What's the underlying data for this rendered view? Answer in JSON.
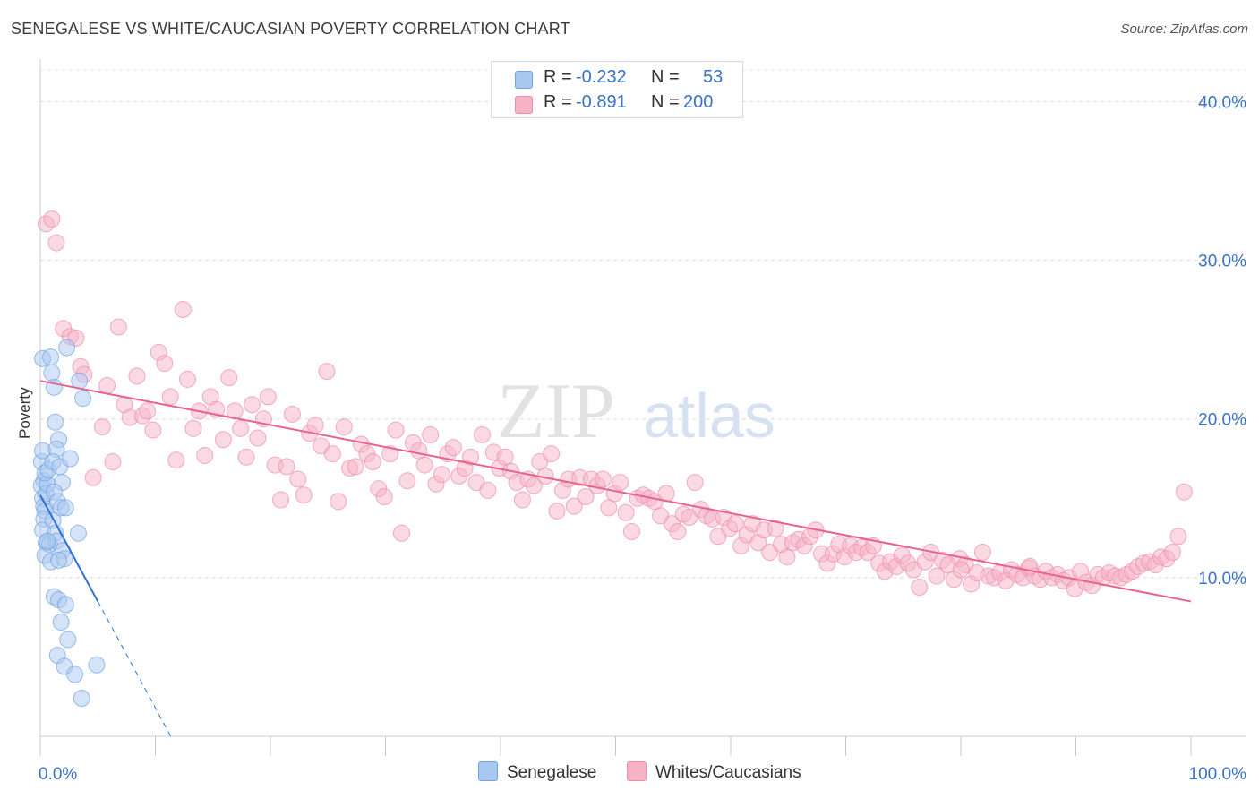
{
  "title": "SENEGALESE VS WHITE/CAUCASIAN POVERTY CORRELATION CHART",
  "source": "Source: ZipAtlas.com",
  "watermark": {
    "zip": "ZIP",
    "atlas": "atlas"
  },
  "legend": {
    "rows": [
      {
        "r_label": "R =",
        "r_value": "-0.232",
        "n_label": "N =",
        "n_value": "53",
        "color": "#a9c8f0"
      },
      {
        "r_label": "R =",
        "r_value": "-0.891",
        "n_label": "N =",
        "n_value": "200",
        "color": "#f6b3c6"
      }
    ]
  },
  "bottom_legend": {
    "s1": "Senegalese",
    "s2": "Whites/Caucasians"
  },
  "chart_data": {
    "type": "scatter",
    "title": "SENEGALESE VS WHITE/CAUCASIAN POVERTY CORRELATION CHART",
    "xlabel": "",
    "ylabel": "Poverty",
    "xlim": [
      0,
      100
    ],
    "ylim": [
      0,
      42
    ],
    "x_tick_labels": [
      "0.0%",
      "100.0%"
    ],
    "y_tick_labels": [
      "10.0%",
      "20.0%",
      "30.0%",
      "40.0%"
    ],
    "y_ticks": [
      10,
      20,
      30,
      40
    ],
    "grid": "horizontal dashed",
    "legend_placement": "top-center",
    "series": [
      {
        "name": "Senegalese",
        "color": "#6fa3e6",
        "fill": "#a9c8f0",
        "trend": {
          "x0": 0,
          "y0": 15.2,
          "x1": 5,
          "y1": 8.5,
          "dash_to_x": 11.5,
          "color": "#2f72d0"
        },
        "points": [
          [
            0.2,
            23.8
          ],
          [
            0.3,
            16.1
          ],
          [
            0.1,
            15.8
          ],
          [
            0.2,
            15.0
          ],
          [
            0.3,
            14.5
          ],
          [
            0.4,
            14.2
          ],
          [
            0.5,
            15.3
          ],
          [
            0.6,
            15.9
          ],
          [
            0.1,
            17.3
          ],
          [
            0.2,
            18.0
          ],
          [
            0.4,
            16.6
          ],
          [
            0.7,
            16.8
          ],
          [
            0.3,
            13.7
          ],
          [
            0.2,
            13.0
          ],
          [
            0.5,
            12.2
          ],
          [
            0.8,
            12.1
          ],
          [
            0.4,
            11.4
          ],
          [
            0.9,
            11.0
          ],
          [
            1.2,
            22.0
          ],
          [
            0.9,
            23.9
          ],
          [
            1.0,
            22.9
          ],
          [
            1.3,
            19.8
          ],
          [
            1.6,
            18.7
          ],
          [
            1.4,
            18.1
          ],
          [
            1.1,
            17.3
          ],
          [
            1.7,
            17.0
          ],
          [
            1.9,
            16.0
          ],
          [
            1.2,
            15.4
          ],
          [
            1.5,
            14.8
          ],
          [
            1.8,
            14.4
          ],
          [
            1.1,
            13.6
          ],
          [
            1.3,
            12.8
          ],
          [
            1.4,
            12.3
          ],
          [
            1.9,
            11.7
          ],
          [
            2.1,
            11.2
          ],
          [
            1.6,
            11.1
          ],
          [
            1.2,
            8.8
          ],
          [
            1.6,
            8.6
          ],
          [
            2.2,
            8.3
          ],
          [
            1.8,
            7.2
          ],
          [
            2.4,
            6.1
          ],
          [
            1.5,
            5.1
          ],
          [
            2.1,
            4.4
          ],
          [
            3.0,
            3.9
          ],
          [
            3.6,
            2.4
          ],
          [
            4.9,
            4.5
          ],
          [
            2.3,
            24.5
          ],
          [
            3.4,
            22.4
          ],
          [
            3.7,
            21.3
          ],
          [
            3.3,
            12.8
          ],
          [
            2.6,
            17.5
          ],
          [
            2.2,
            14.4
          ],
          [
            0.6,
            12.3
          ]
        ]
      },
      {
        "name": "Whites/Caucasians",
        "color": "#f08aa8",
        "fill": "#f6b3c6",
        "trend": {
          "x0": 0,
          "y0": 22.4,
          "x1": 100,
          "y1": 8.5,
          "color": "#e8628c"
        },
        "points": [
          [
            0.5,
            32.3
          ],
          [
            1.0,
            32.6
          ],
          [
            1.4,
            31.1
          ],
          [
            2.0,
            25.7
          ],
          [
            2.6,
            25.2
          ],
          [
            3.1,
            25.1
          ],
          [
            3.5,
            23.3
          ],
          [
            3.8,
            22.8
          ],
          [
            4.6,
            16.3
          ],
          [
            5.4,
            19.5
          ],
          [
            5.8,
            22.1
          ],
          [
            6.3,
            17.3
          ],
          [
            6.8,
            25.8
          ],
          [
            7.3,
            20.9
          ],
          [
            7.8,
            20.1
          ],
          [
            8.4,
            22.7
          ],
          [
            8.9,
            20.2
          ],
          [
            9.3,
            20.5
          ],
          [
            9.8,
            19.3
          ],
          [
            10.3,
            24.2
          ],
          [
            10.8,
            23.5
          ],
          [
            11.3,
            21.4
          ],
          [
            11.8,
            17.4
          ],
          [
            12.4,
            26.9
          ],
          [
            12.8,
            22.5
          ],
          [
            13.3,
            19.4
          ],
          [
            13.8,
            20.5
          ],
          [
            14.3,
            17.7
          ],
          [
            14.8,
            21.4
          ],
          [
            15.3,
            20.6
          ],
          [
            15.9,
            18.7
          ],
          [
            16.4,
            22.6
          ],
          [
            16.9,
            20.5
          ],
          [
            17.4,
            19.4
          ],
          [
            17.9,
            17.6
          ],
          [
            18.4,
            20.9
          ],
          [
            18.9,
            18.8
          ],
          [
            19.4,
            20.0
          ],
          [
            19.8,
            21.4
          ],
          [
            20.4,
            17.1
          ],
          [
            20.9,
            14.9
          ],
          [
            21.4,
            17.0
          ],
          [
            21.9,
            20.3
          ],
          [
            22.4,
            16.2
          ],
          [
            22.9,
            15.2
          ],
          [
            23.4,
            19.1
          ],
          [
            23.9,
            19.6
          ],
          [
            24.4,
            18.3
          ],
          [
            24.9,
            23.0
          ],
          [
            25.4,
            17.8
          ],
          [
            25.9,
            14.8
          ],
          [
            26.4,
            19.5
          ],
          [
            26.9,
            16.9
          ],
          [
            27.4,
            17.0
          ],
          [
            27.9,
            18.4
          ],
          [
            28.4,
            17.8
          ],
          [
            28.9,
            17.3
          ],
          [
            29.4,
            15.6
          ],
          [
            29.9,
            15.1
          ],
          [
            30.4,
            17.8
          ],
          [
            30.9,
            19.3
          ],
          [
            31.4,
            12.8
          ],
          [
            31.9,
            16.1
          ],
          [
            32.4,
            18.5
          ],
          [
            32.9,
            18.0
          ],
          [
            33.4,
            17.1
          ],
          [
            33.9,
            19.0
          ],
          [
            34.4,
            15.9
          ],
          [
            34.9,
            16.5
          ],
          [
            35.4,
            17.8
          ],
          [
            35.9,
            18.2
          ],
          [
            36.4,
            16.4
          ],
          [
            36.9,
            16.9
          ],
          [
            37.4,
            17.6
          ],
          [
            37.9,
            16.0
          ],
          [
            38.4,
            19.0
          ],
          [
            38.9,
            15.5
          ],
          [
            39.4,
            17.9
          ],
          [
            39.9,
            16.9
          ],
          [
            40.4,
            17.6
          ],
          [
            40.9,
            16.7
          ],
          [
            41.4,
            16.0
          ],
          [
            41.9,
            14.9
          ],
          [
            42.4,
            16.2
          ],
          [
            42.9,
            15.8
          ],
          [
            43.4,
            17.3
          ],
          [
            43.9,
            16.4
          ],
          [
            44.4,
            17.8
          ],
          [
            44.9,
            14.2
          ],
          [
            45.4,
            15.5
          ],
          [
            45.9,
            16.2
          ],
          [
            46.4,
            14.5
          ],
          [
            46.9,
            16.3
          ],
          [
            47.4,
            15.1
          ],
          [
            47.9,
            16.2
          ],
          [
            48.4,
            15.8
          ],
          [
            48.9,
            16.2
          ],
          [
            49.4,
            14.4
          ],
          [
            49.9,
            15.3
          ],
          [
            50.4,
            16.0
          ],
          [
            50.9,
            14.1
          ],
          [
            51.4,
            12.9
          ],
          [
            51.9,
            15.0
          ],
          [
            52.4,
            15.2
          ],
          [
            52.9,
            15.0
          ],
          [
            53.4,
            14.8
          ],
          [
            53.9,
            13.9
          ],
          [
            54.4,
            15.3
          ],
          [
            54.9,
            13.4
          ],
          [
            55.4,
            12.9
          ],
          [
            55.9,
            14.0
          ],
          [
            56.4,
            13.8
          ],
          [
            56.9,
            16.0
          ],
          [
            57.4,
            14.3
          ],
          [
            57.9,
            13.9
          ],
          [
            58.4,
            13.7
          ],
          [
            58.9,
            12.6
          ],
          [
            59.4,
            13.8
          ],
          [
            59.9,
            13.1
          ],
          [
            60.4,
            13.4
          ],
          [
            60.9,
            12.0
          ],
          [
            61.4,
            12.7
          ],
          [
            61.9,
            13.4
          ],
          [
            62.4,
            12.2
          ],
          [
            62.9,
            13.0
          ],
          [
            63.4,
            11.6
          ],
          [
            63.9,
            13.1
          ],
          [
            64.4,
            12.1
          ],
          [
            64.9,
            11.3
          ],
          [
            65.4,
            12.2
          ],
          [
            65.9,
            12.4
          ],
          [
            66.4,
            12.0
          ],
          [
            66.9,
            12.6
          ],
          [
            67.4,
            13.0
          ],
          [
            67.9,
            11.5
          ],
          [
            68.4,
            10.9
          ],
          [
            68.9,
            11.5
          ],
          [
            69.4,
            12.1
          ],
          [
            69.9,
            11.3
          ],
          [
            70.4,
            12.0
          ],
          [
            70.9,
            11.6
          ],
          [
            71.4,
            11.9
          ],
          [
            71.9,
            11.6
          ],
          [
            72.4,
            12.0
          ],
          [
            72.9,
            10.9
          ],
          [
            73.4,
            10.4
          ],
          [
            73.9,
            11.0
          ],
          [
            74.4,
            10.7
          ],
          [
            74.9,
            11.4
          ],
          [
            75.4,
            10.9
          ],
          [
            75.9,
            10.5
          ],
          [
            76.4,
            9.4
          ],
          [
            76.9,
            11.0
          ],
          [
            77.4,
            11.6
          ],
          [
            77.9,
            10.1
          ],
          [
            78.4,
            11.1
          ],
          [
            78.9,
            10.8
          ],
          [
            79.4,
            9.9
          ],
          [
            79.9,
            11.2
          ],
          [
            80.4,
            10.8
          ],
          [
            80.9,
            9.6
          ],
          [
            81.4,
            10.3
          ],
          [
            81.9,
            11.6
          ],
          [
            82.4,
            10.1
          ],
          [
            82.9,
            10.0
          ],
          [
            83.4,
            10.3
          ],
          [
            83.9,
            9.8
          ],
          [
            84.4,
            10.5
          ],
          [
            84.9,
            10.2
          ],
          [
            85.4,
            10.0
          ],
          [
            85.9,
            10.6
          ],
          [
            86.4,
            10.1
          ],
          [
            86.9,
            9.9
          ],
          [
            87.4,
            10.4
          ],
          [
            87.9,
            10.0
          ],
          [
            88.4,
            10.2
          ],
          [
            88.9,
            9.8
          ],
          [
            89.4,
            10.0
          ],
          [
            89.9,
            9.3
          ],
          [
            90.4,
            10.4
          ],
          [
            90.9,
            9.7
          ],
          [
            91.4,
            9.5
          ],
          [
            91.9,
            10.2
          ],
          [
            92.4,
            10.0
          ],
          [
            92.9,
            10.3
          ],
          [
            93.4,
            10.1
          ],
          [
            93.9,
            10.0
          ],
          [
            94.4,
            10.2
          ],
          [
            94.9,
            10.4
          ],
          [
            95.4,
            10.7
          ],
          [
            95.9,
            10.9
          ],
          [
            96.4,
            11.0
          ],
          [
            96.9,
            10.8
          ],
          [
            97.4,
            11.3
          ],
          [
            97.9,
            11.2
          ],
          [
            98.4,
            11.6
          ],
          [
            98.9,
            12.6
          ],
          [
            99.4,
            15.4
          ],
          [
            86.0,
            10.7
          ],
          [
            80.0,
            10.5
          ]
        ]
      }
    ]
  }
}
